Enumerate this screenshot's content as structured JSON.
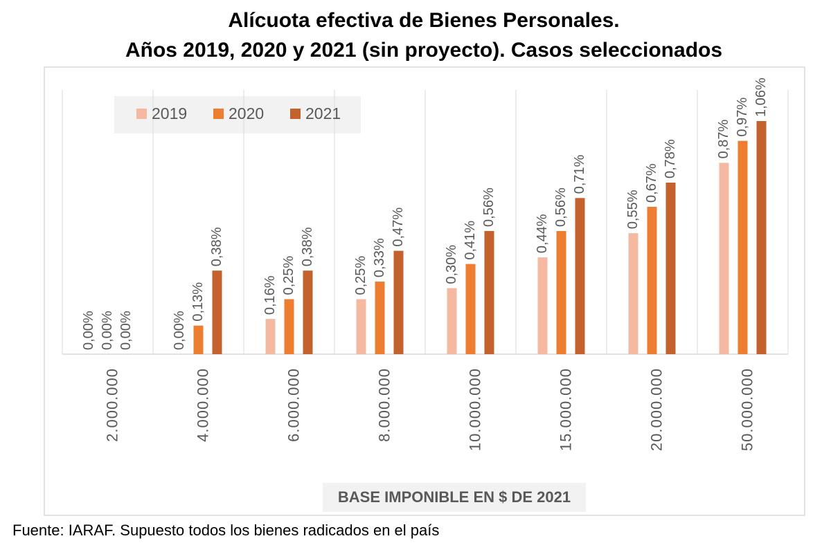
{
  "chart_data": {
    "type": "bar",
    "title": "Alícuota efectiva de Bienes Personales.",
    "subtitle": "Años 2019, 2020 y 2021 (sin proyecto). Casos seleccionados",
    "x_label": "BASE IMPONIBLE EN $ DE 2021",
    "source": "Fuente: IARAF. Supuesto todos los bienes radicados en el país",
    "categories": [
      "2.000.000",
      "4.000.000",
      "6.000.000",
      "8.000.000",
      "10.000.000",
      "15.000.000",
      "20.000.000",
      "50.000.000"
    ],
    "series": [
      {
        "name": "2019",
        "color": "#f4b9a0",
        "values": [
          0,
          0,
          0.16,
          0.25,
          0.3,
          0.44,
          0.55,
          0.87
        ],
        "value_labels": [
          "0,00%",
          "0,00%",
          "0,16%",
          "0,25%",
          "0,30%",
          "0,44%",
          "0,55%",
          "0,87%"
        ]
      },
      {
        "name": "2020",
        "color": "#ed7d31",
        "values": [
          0,
          0.13,
          0.25,
          0.33,
          0.41,
          0.56,
          0.67,
          0.97
        ],
        "value_labels": [
          "0,00%",
          "0,13%",
          "0,25%",
          "0,33%",
          "0,41%",
          "0,56%",
          "0,67%",
          "0,97%"
        ]
      },
      {
        "name": "2021",
        "color": "#c4622d",
        "values": [
          0,
          0.38,
          0.38,
          0.47,
          0.56,
          0.71,
          0.78,
          1.06
        ],
        "value_labels": [
          "0,00%",
          "0,38%",
          "0,38%",
          "0,47%",
          "0,56%",
          "0,71%",
          "0,78%",
          "1,06%"
        ]
      }
    ],
    "legend": "top-left"
  }
}
